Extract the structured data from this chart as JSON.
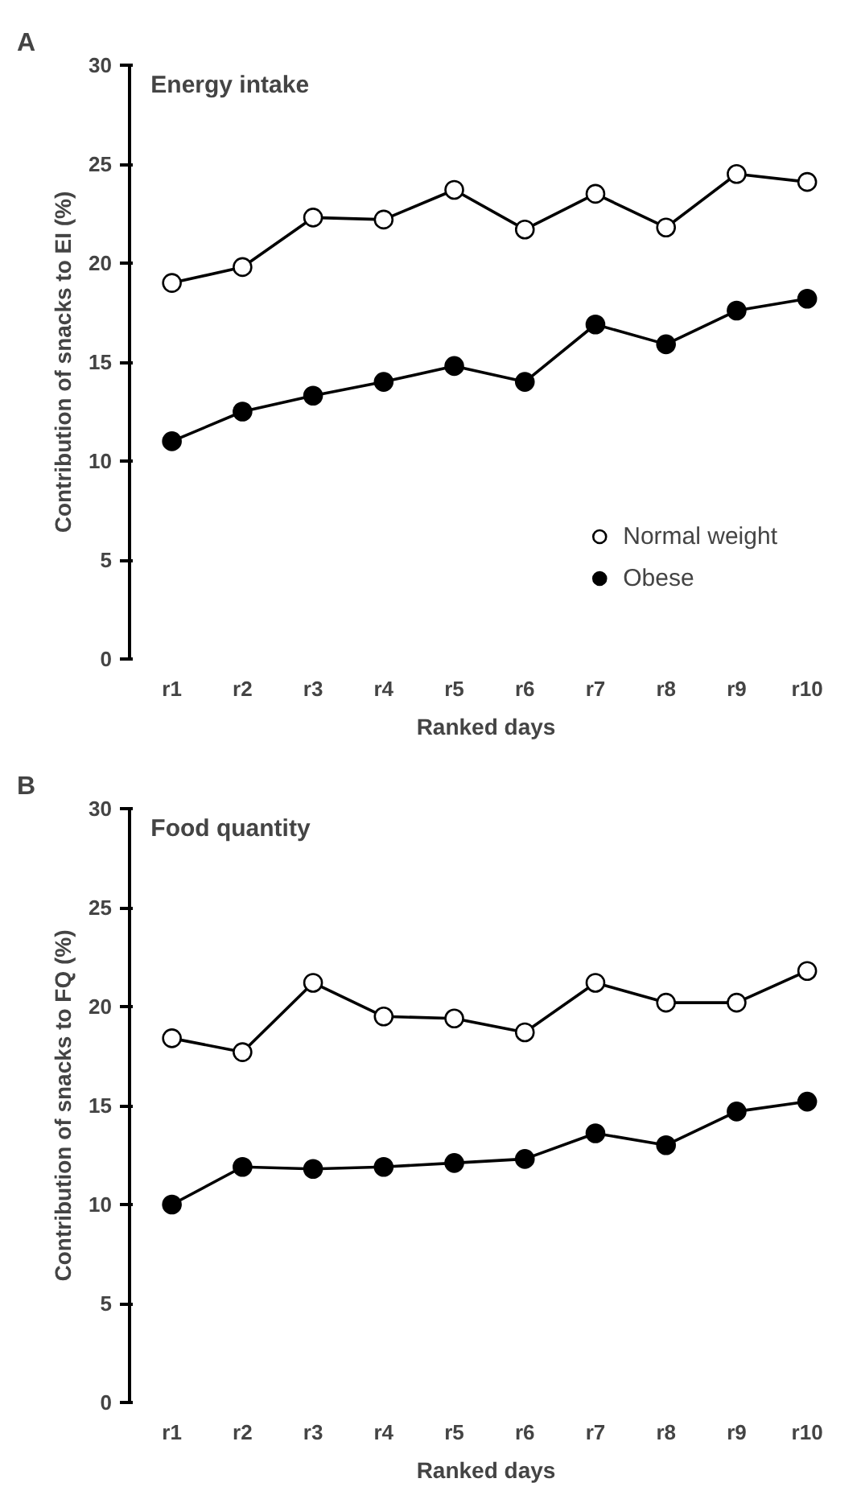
{
  "chart_data": [
    {
      "type": "line",
      "title": "Energy intake",
      "xlabel": "Ranked days",
      "ylabel": "Contribution of snacks to EI (%)",
      "annotations": [
        "A"
      ],
      "categories": [
        "r1",
        "r2",
        "r3",
        "r4",
        "r5",
        "r6",
        "r7",
        "r8",
        "r9",
        "r10"
      ],
      "series": [
        {
          "name": "Normal weight",
          "color": "#ffffff",
          "values": [
            19.0,
            19.8,
            22.3,
            22.2,
            23.7,
            21.7,
            23.5,
            21.8,
            24.5,
            24.1
          ]
        },
        {
          "name": "Obese",
          "color": "#000000",
          "values": [
            11.0,
            12.5,
            13.3,
            14.0,
            14.8,
            14.0,
            16.9,
            15.9,
            17.6,
            18.2
          ]
        }
      ],
      "ylim": [
        0,
        30
      ],
      "yticks": [
        0,
        5,
        10,
        15,
        20,
        25,
        30
      ],
      "grid": false,
      "legend": "bottom right",
      "marker": "circle",
      "line_style": "solid"
    },
    {
      "type": "line",
      "title": "Food quantity",
      "xlabel": "Ranked days",
      "ylabel": "Contribution of snacks to FQ (%)",
      "annotations": [
        "B"
      ],
      "categories": [
        "r1",
        "r2",
        "r3",
        "r4",
        "r5",
        "r6",
        "r7",
        "r8",
        "r9",
        "r10"
      ],
      "series": [
        {
          "color": "#ffffff",
          "values": [
            18.4,
            17.7,
            21.2,
            19.5,
            19.4,
            18.7,
            21.2,
            20.2,
            20.2,
            21.8
          ]
        },
        {
          "color": "#000000",
          "values": [
            10.0,
            11.9,
            11.8,
            11.9,
            12.1,
            12.3,
            13.6,
            13.0,
            14.7,
            15.2
          ]
        }
      ],
      "ylim": [
        0,
        30
      ],
      "yticks": [
        0,
        5,
        10,
        15,
        20,
        25,
        30
      ],
      "grid": false,
      "marker": "circle",
      "line_style": "solid"
    }
  ]
}
